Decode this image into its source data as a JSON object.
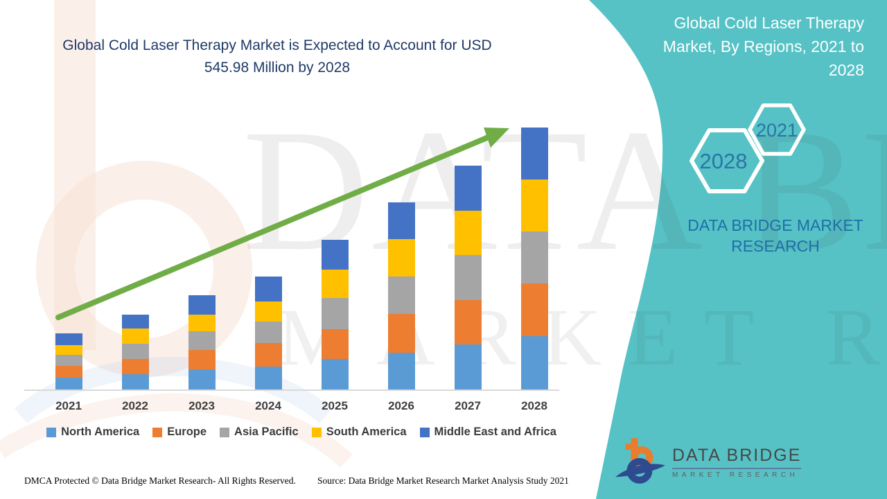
{
  "colors": {
    "panel_teal": "#56C2C5",
    "title_navy": "#1E3A66",
    "trend_arrow_green": "#70AD47",
    "hexagon_year_blue": "#2B74A8",
    "brand_blue": "#1E6FA8",
    "axis_gray": "#D9D9D9"
  },
  "watermark": {
    "line1": "DATA BRIDGE",
    "line2": "MARKET RESEARCH"
  },
  "side_panel": {
    "title_lines": [
      "Global Cold Laser Therapy",
      "Market, By Regions, 2021 to",
      "2028"
    ],
    "hexagon_start_year": "2021",
    "hexagon_end_year": "2028",
    "brand_text": "DATA BRIDGE MARKET RESEARCH"
  },
  "logo": {
    "name_line": "DATA BRIDGE",
    "sub_line": "MARKET RESEARCH"
  },
  "footer": {
    "dmca": "DMCA Protected © Data Bridge Market Research- All Rights Reserved.",
    "source": "Source: Data Bridge Market Research Market Analysis Study 2021"
  },
  "chart_data": {
    "type": "bar",
    "stacked": true,
    "title": "Global Cold Laser Therapy Market is Expected to Account for USD 545.98 Million by 2028",
    "unit": "USD Million",
    "categories": [
      "2021",
      "2022",
      "2023",
      "2024",
      "2025",
      "2026",
      "2027",
      "2028"
    ],
    "series": [
      {
        "name": "North America",
        "color": "#5B9BD5",
        "values": [
          24.7,
          31.9,
          42.1,
          47.9,
          63.9,
          77.0,
          94.4,
          111.8
        ]
      },
      {
        "name": "Europe",
        "color": "#ED7D31",
        "values": [
          24.7,
          31.9,
          40.7,
          49.4,
          62.4,
          79.9,
          91.5,
          108.9
        ]
      },
      {
        "name": "Asia Pacific",
        "color": "#A5A5A5",
        "values": [
          23.2,
          31.9,
          39.2,
          45.0,
          63.9,
          78.4,
          94.4,
          108.9
        ]
      },
      {
        "name": "South America",
        "color": "#FFC000",
        "values": [
          20.3,
          31.9,
          34.9,
          42.1,
          59.5,
          78.4,
          92.9,
          108.9
        ]
      },
      {
        "name": "Middle East and Africa",
        "color": "#4472C4",
        "values": [
          24.7,
          29.0,
          39.2,
          50.8,
          62.4,
          77.0,
          94.4,
          107.5
        ]
      }
    ],
    "totals_estimated": [
      117.6,
      156.6,
      196.1,
      235.2,
      312.1,
      390.7,
      467.6,
      546.0
    ],
    "final_year_total_label": "USD 545.98 Million",
    "ylim": [
      0,
      610
    ],
    "grid": false,
    "legend_position": "bottom",
    "annotations": [
      "upward green trend arrow across bars"
    ]
  }
}
